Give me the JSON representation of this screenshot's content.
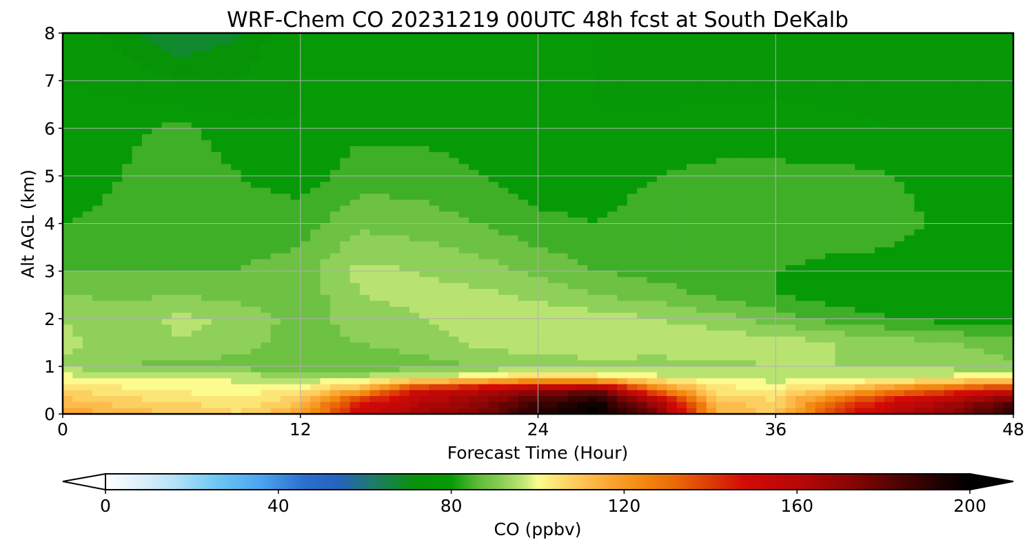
{
  "chart_data": {
    "type": "heatmap",
    "title": "WRF-Chem CO  20231219 00UTC 48h fcst at South DeKalb",
    "xlabel": "Forecast Time (Hour)",
    "ylabel": "Alt AGL (km)",
    "xlim": [
      0,
      48
    ],
    "ylim": [
      0,
      8
    ],
    "xticks": [
      0,
      12,
      24,
      36,
      48
    ],
    "yticks": [
      0,
      1,
      2,
      3,
      4,
      5,
      6,
      7,
      8
    ],
    "grid": true,
    "x": [
      0,
      3,
      6,
      9,
      12,
      15,
      18,
      21,
      24,
      27,
      30,
      33,
      36,
      39,
      42,
      45,
      48
    ],
    "y": [
      0,
      0.25,
      0.5,
      0.75,
      1,
      1.5,
      2,
      2.5,
      3,
      3.5,
      4,
      5,
      6,
      7,
      8
    ],
    "z": [
      [
        118,
        112,
        110,
        106,
        118,
        150,
        165,
        175,
        192,
        200,
        175,
        115,
        108,
        140,
        160,
        172,
        192
      ],
      [
        112,
        108,
        106,
        103,
        110,
        145,
        160,
        170,
        186,
        196,
        165,
        112,
        106,
        132,
        152,
        166,
        182
      ],
      [
        106,
        103,
        101,
        100,
        103,
        115,
        150,
        160,
        170,
        178,
        128,
        104,
        103,
        110,
        125,
        138,
        150
      ],
      [
        100,
        99,
        98,
        97,
        95,
        96,
        98,
        102,
        110,
        105,
        100,
        97,
        96,
        96,
        98,
        100,
        102
      ],
      [
        93,
        90,
        89,
        88,
        86,
        86,
        88,
        90,
        91,
        92,
        92,
        93,
        94,
        94,
        93,
        92,
        91
      ],
      [
        95,
        92,
        94,
        92,
        88,
        90,
        92,
        95,
        97,
        98,
        97,
        97,
        96,
        94,
        92,
        90,
        88
      ],
      [
        94,
        92,
        95,
        93,
        88,
        92,
        94,
        96,
        97,
        96,
        94,
        92,
        88,
        84,
        82,
        80,
        79
      ],
      [
        90,
        89,
        90,
        88,
        87,
        94,
        95,
        95,
        93,
        90,
        88,
        85,
        82,
        80,
        79,
        79,
        79
      ],
      [
        86,
        86,
        86,
        86,
        88,
        95,
        94,
        92,
        89,
        86,
        84,
        84,
        82,
        80,
        79,
        78,
        78
      ],
      [
        84,
        84,
        86,
        85,
        86,
        92,
        91,
        89,
        86,
        84,
        85,
        85,
        84,
        83,
        82,
        79,
        78
      ],
      [
        82,
        83,
        86,
        84,
        84,
        89,
        88,
        86,
        83,
        82,
        85,
        86,
        86,
        85,
        84,
        80,
        78
      ],
      [
        80,
        82,
        85,
        82,
        80,
        84,
        84,
        82,
        80,
        79,
        82,
        83,
        83,
        83,
        82,
        79,
        78
      ],
      [
        79,
        81,
        83,
        79,
        78,
        81,
        81,
        80,
        79,
        78,
        79,
        80,
        80,
        79,
        78,
        78,
        78
      ],
      [
        78,
        77,
        74,
        74,
        78,
        79,
        79,
        78,
        78,
        78,
        77,
        77,
        77,
        77,
        76,
        77,
        78
      ],
      [
        78,
        72,
        66,
        70,
        78,
        78,
        78,
        78,
        78,
        78,
        76,
        76,
        76,
        74,
        74,
        76,
        78
      ]
    ],
    "colorbar": {
      "label": "CO  (ppbv)",
      "min": 0,
      "max": 200,
      "ticks": [
        0,
        40,
        80,
        120,
        160,
        200
      ],
      "extend": "both",
      "stops": [
        [
          0,
          "#ffffff"
        ],
        [
          8,
          "#dcf0fb"
        ],
        [
          16,
          "#b4e2f7"
        ],
        [
          26,
          "#6cc6f4"
        ],
        [
          36,
          "#4aa5ee"
        ],
        [
          46,
          "#2b6ed0"
        ],
        [
          54,
          "#2464bc"
        ],
        [
          62,
          "#1f7b68"
        ],
        [
          72,
          "#079307"
        ],
        [
          80,
          "#079a07"
        ],
        [
          86,
          "#5cba38"
        ],
        [
          92,
          "#8fd05a"
        ],
        [
          97,
          "#c4e877"
        ],
        [
          100,
          "#fbfb8e"
        ],
        [
          108,
          "#fccf60"
        ],
        [
          116,
          "#fba836"
        ],
        [
          124,
          "#f38a10"
        ],
        [
          132,
          "#ea6808"
        ],
        [
          140,
          "#dc3a06"
        ],
        [
          148,
          "#d40a07"
        ],
        [
          160,
          "#b80807"
        ],
        [
          172,
          "#8c0505"
        ],
        [
          184,
          "#4c0303"
        ],
        [
          194,
          "#1a0101"
        ],
        [
          200,
          "#000000"
        ]
      ]
    }
  }
}
